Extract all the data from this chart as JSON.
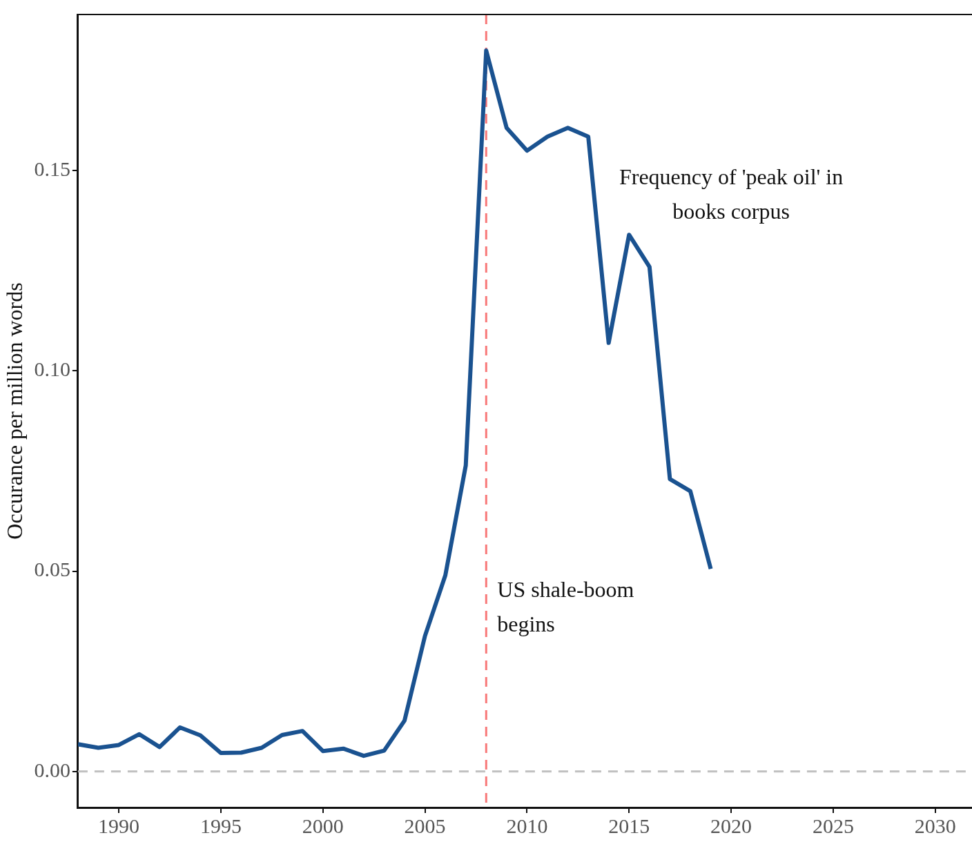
{
  "chart_data": {
    "type": "line",
    "ylabel": "Occurance per million words",
    "x": [
      1988,
      1989,
      1990,
      1991,
      1992,
      1993,
      1994,
      1995,
      1996,
      1997,
      1998,
      1999,
      2000,
      2001,
      2002,
      2003,
      2004,
      2005,
      2006,
      2007,
      2008,
      2009,
      2010,
      2011,
      2012,
      2013,
      2014,
      2015,
      2016,
      2017,
      2018,
      2019
    ],
    "series": [
      {
        "name": "Frequency of 'peak oil' in books corpus",
        "color": "#1a5290",
        "values": [
          0.0068,
          0.0059,
          0.0066,
          0.0093,
          0.0061,
          0.011,
          0.009,
          0.0046,
          0.0047,
          0.0059,
          0.0091,
          0.0101,
          0.0051,
          0.0057,
          0.0039,
          0.0052,
          0.0127,
          0.0338,
          0.049,
          0.0764,
          0.18,
          0.1607,
          0.155,
          0.1585,
          0.1607,
          0.1585,
          0.107,
          0.134,
          0.126,
          0.073,
          0.07,
          0.0506
        ]
      }
    ],
    "xlim": [
      1988,
      2031.8
    ],
    "xticks": [
      1990,
      1995,
      2000,
      2005,
      2010,
      2015,
      2020,
      2025,
      2030
    ],
    "ylim": [
      -0.009,
      0.189
    ],
    "yticks": [
      {
        "value": 0,
        "label": "0.00"
      },
      {
        "value": 0.05,
        "label": "0.05"
      },
      {
        "value": 0.1,
        "label": "0.10"
      },
      {
        "value": 0.15,
        "label": "0.15"
      }
    ],
    "ref_lines": [
      {
        "axis": "x",
        "value": 2008,
        "label": "US shale-boom begins",
        "color": "#f87878",
        "line_style": "dashed"
      },
      {
        "axis": "y",
        "value": 0,
        "label": null,
        "color": "#c0c0c0",
        "line_style": "dashed"
      }
    ],
    "grid": false,
    "legend": false,
    "marker": "none",
    "line_style": "solid"
  }
}
